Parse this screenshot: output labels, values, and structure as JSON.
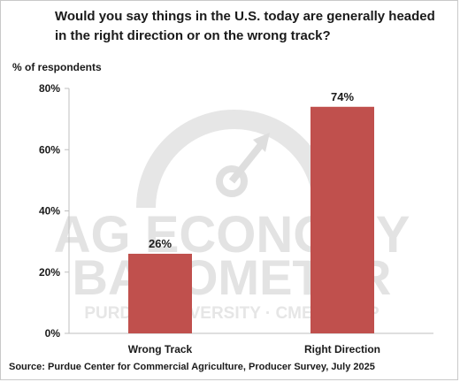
{
  "title": "Would you say things in the U.S. today are generally headed in the right direction or on the wrong track?",
  "source": "Source: Purdue Center for Commercial Agriculture, Producer Survey, July 2025",
  "watermark": {
    "line1": "AG ECONOMY",
    "line2": "BAROMETER",
    "line3": "PURDUE UNIVERSITY · CME GROUP"
  },
  "colors": {
    "bar": "#c0504d",
    "axis": "#bfbfbf",
    "watermark": "#e3e3e3"
  },
  "chart_data": {
    "type": "bar",
    "title": "Would you say things in the U.S. today are generally headed in the right direction or on the wrong track?",
    "ylabel": "% of respondents",
    "xlabel": "",
    "categories": [
      "Wrong Track",
      "Right Direction"
    ],
    "values": [
      26,
      74
    ],
    "data_labels": [
      "26%",
      "74%"
    ],
    "ylim": [
      0,
      80
    ],
    "yticks": [
      0,
      20,
      40,
      60,
      80
    ],
    "ytick_labels": [
      "0%",
      "20%",
      "40%",
      "60%",
      "80%"
    ],
    "grid": false,
    "legend": "none"
  }
}
